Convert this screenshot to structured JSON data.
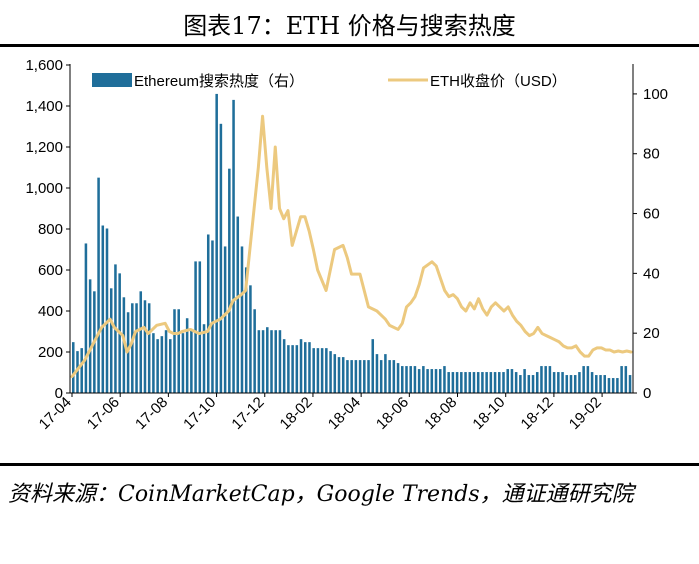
{
  "title": "图表17：ETH 价格与搜索热度",
  "source": "资料来源：CoinMarketCap，Google Trends，通证通研究院",
  "chart_data": {
    "type": "bar+line",
    "x_tick_labels": [
      "17-04",
      "17-06",
      "17-08",
      "17-10",
      "17-12",
      "18-02",
      "18-04",
      "18-06",
      "18-08",
      "18-10",
      "18-12",
      "19-02"
    ],
    "y_left": {
      "ticks": [
        "0",
        "200",
        "400",
        "600",
        "800",
        "1,000",
        "1,200",
        "1,400",
        "1,600"
      ],
      "range": [
        0,
        1600
      ]
    },
    "y_right": {
      "ticks": [
        "0",
        "20",
        "40",
        "60",
        "80",
        "100"
      ],
      "range": [
        0,
        110
      ]
    },
    "grid": false,
    "legend_position": "top",
    "series": [
      {
        "name": "Ethereum搜索热度（右）",
        "kind": "bar",
        "axis": "right",
        "color": "#1f6e9a",
        "values": [
          17,
          14,
          15,
          50,
          38,
          34,
          72,
          56,
          55,
          35,
          43,
          40,
          32,
          27,
          30,
          30,
          34,
          31,
          30,
          20,
          18,
          19,
          21,
          18,
          28,
          28,
          20,
          25,
          21,
          44,
          44,
          23,
          53,
          51,
          100,
          90,
          49,
          75,
          98,
          59,
          49,
          42,
          36,
          28,
          21,
          21,
          22,
          21,
          21,
          21,
          18,
          16,
          16,
          16,
          18,
          17,
          17,
          15,
          15,
          15,
          15,
          14,
          13,
          12,
          12,
          11,
          11,
          11,
          11,
          11,
          11,
          18,
          13,
          11,
          13,
          11,
          11,
          10,
          9,
          9,
          9,
          9,
          8,
          9,
          8,
          8,
          8,
          8,
          9,
          7,
          7,
          7,
          7,
          7,
          7,
          7,
          7,
          7,
          7,
          7,
          7,
          7,
          7,
          8,
          8,
          7,
          6,
          8,
          6,
          6,
          7,
          9,
          9,
          9,
          7,
          7,
          7,
          6,
          6,
          6,
          7,
          9,
          9,
          7,
          6,
          6,
          6,
          5,
          5,
          5,
          9,
          9,
          6
        ]
      },
      {
        "name": "ETH收盘价（USD）",
        "kind": "line",
        "axis": "left",
        "color": "#ecc97f",
        "x_domain": [
          0,
          132
        ],
        "points": [
          [
            0,
            80
          ],
          [
            3,
            160
          ],
          [
            5,
            240
          ],
          [
            7,
            320
          ],
          [
            9,
            360
          ],
          [
            10,
            320
          ],
          [
            11,
            300
          ],
          [
            12,
            280
          ],
          [
            13,
            200
          ],
          [
            14,
            240
          ],
          [
            15,
            300
          ],
          [
            17,
            320
          ],
          [
            18,
            290
          ],
          [
            20,
            330
          ],
          [
            22,
            340
          ],
          [
            23,
            300
          ],
          [
            24,
            290
          ],
          [
            25,
            290
          ],
          [
            26,
            300
          ],
          [
            28,
            310
          ],
          [
            30,
            290
          ],
          [
            32,
            300
          ],
          [
            33,
            340
          ],
          [
            35,
            360
          ],
          [
            37,
            400
          ],
          [
            38,
            450
          ],
          [
            40,
            480
          ],
          [
            41,
            500
          ],
          [
            42,
            700
          ],
          [
            43,
            900
          ],
          [
            44,
            1100
          ],
          [
            45,
            1350
          ],
          [
            46,
            1100
          ],
          [
            47,
            900
          ],
          [
            48,
            1200
          ],
          [
            49,
            900
          ],
          [
            50,
            850
          ],
          [
            51,
            890
          ],
          [
            52,
            720
          ],
          [
            54,
            860
          ],
          [
            55,
            860
          ],
          [
            56,
            790
          ],
          [
            57,
            700
          ],
          [
            58,
            600
          ],
          [
            60,
            500
          ],
          [
            62,
            700
          ],
          [
            64,
            720
          ],
          [
            65,
            660
          ],
          [
            66,
            580
          ],
          [
            68,
            580
          ],
          [
            70,
            420
          ],
          [
            72,
            400
          ],
          [
            74,
            360
          ],
          [
            75,
            330
          ],
          [
            77,
            310
          ],
          [
            78,
            340
          ],
          [
            79,
            420
          ],
          [
            80,
            440
          ],
          [
            81,
            470
          ],
          [
            82,
            530
          ],
          [
            83,
            610
          ],
          [
            85,
            640
          ],
          [
            86,
            620
          ],
          [
            87,
            560
          ],
          [
            88,
            500
          ],
          [
            89,
            470
          ],
          [
            90,
            480
          ],
          [
            91,
            460
          ],
          [
            92,
            420
          ],
          [
            93,
            400
          ],
          [
            94,
            440
          ],
          [
            95,
            410
          ],
          [
            96,
            460
          ],
          [
            97,
            410
          ],
          [
            98,
            380
          ],
          [
            99,
            420
          ],
          [
            100,
            440
          ],
          [
            101,
            420
          ],
          [
            102,
            400
          ],
          [
            103,
            420
          ],
          [
            104,
            380
          ],
          [
            105,
            350
          ],
          [
            106,
            330
          ],
          [
            107,
            300
          ],
          [
            108,
            280
          ],
          [
            109,
            290
          ],
          [
            110,
            320
          ],
          [
            111,
            290
          ],
          [
            112,
            280
          ],
          [
            113,
            270
          ],
          [
            114,
            260
          ],
          [
            115,
            250
          ],
          [
            116,
            230
          ],
          [
            117,
            220
          ],
          [
            118,
            220
          ],
          [
            119,
            230
          ],
          [
            120,
            200
          ],
          [
            121,
            180
          ],
          [
            122,
            180
          ],
          [
            123,
            210
          ],
          [
            124,
            220
          ],
          [
            125,
            220
          ],
          [
            126,
            210
          ],
          [
            127,
            210
          ],
          [
            128,
            200
          ],
          [
            129,
            205
          ],
          [
            130,
            200
          ],
          [
            131,
            205
          ],
          [
            132,
            200
          ]
        ]
      }
    ],
    "legend": [
      {
        "label": "Ethereum搜索热度（右）",
        "swatch": "bar",
        "color": "#1f6e9a"
      },
      {
        "label": "ETH收盘价（USD）",
        "swatch": "line",
        "color": "#ecc97f"
      }
    ]
  }
}
